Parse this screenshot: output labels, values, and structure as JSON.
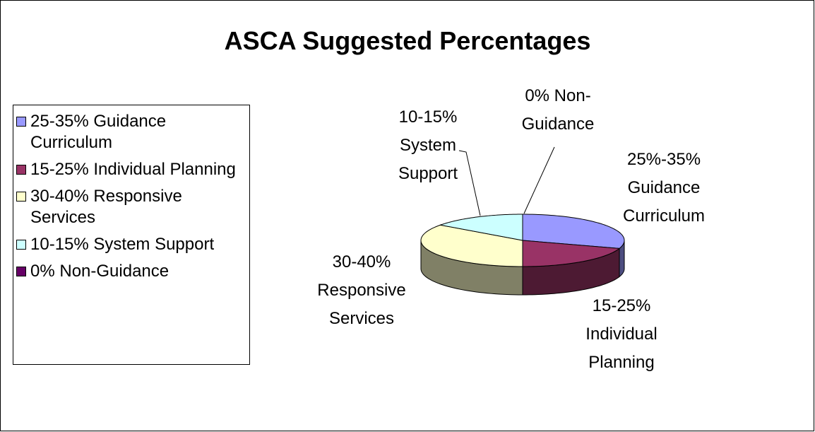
{
  "chart_data": {
    "type": "pie3d",
    "title": "ASCA Suggested Percentages",
    "categories": [
      "25-35% Guidance Curriculum",
      "15-25% Individual Planning",
      "30-40% Responsive Services",
      "10-15% System Support",
      "0% Non-Guidance"
    ],
    "values": [
      30,
      20,
      35,
      15,
      0
    ],
    "colors": [
      "#9999ff",
      "#993366",
      "#ffffcc",
      "#ccffff",
      "#660066"
    ],
    "slice_labels": [
      [
        "25%-35%",
        "Guidance",
        "Curriculum"
      ],
      [
        "15-25%",
        "Individual",
        "Planning"
      ],
      [
        "30-40%",
        "Responsive",
        "Services"
      ],
      [
        "10-15%",
        "System",
        "Support"
      ],
      [
        "0% Non-",
        "Guidance"
      ]
    ],
    "legend": "left"
  }
}
